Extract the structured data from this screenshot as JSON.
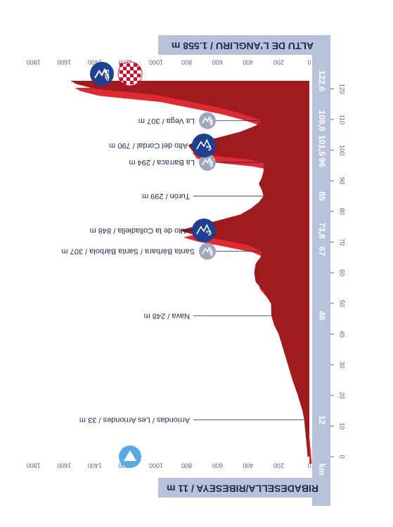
{
  "chart_data": {
    "type": "area",
    "start_title": "RIBADESELLA/RIBESEYA / 11 m",
    "finish_title": "ALTU DE L'ANGLIRU / 1.558 m",
    "x_unit": "km",
    "xlim": [
      0,
      122.6
    ],
    "ylim": [
      0,
      1800
    ],
    "x_ticks": [
      0,
      10,
      20,
      30,
      40,
      50,
      60,
      70,
      80,
      90,
      100,
      110,
      120
    ],
    "y_ticks": [
      0,
      200,
      400,
      600,
      800,
      1000,
      1200,
      1400,
      1600,
      1800
    ],
    "km_markers": [
      "12",
      "46",
      "67",
      "73,8",
      "85",
      "96",
      "101,5",
      "109,6",
      "122,6"
    ],
    "profile": {
      "x": [
        0,
        5,
        10,
        12,
        15,
        20,
        25,
        30,
        35,
        40,
        43,
        46,
        50,
        54,
        57,
        60,
        63,
        65,
        67,
        69,
        71,
        72.5,
        73.8,
        75,
        77,
        79,
        81,
        83,
        85,
        87,
        89,
        91,
        93,
        95,
        96,
        97,
        98,
        99.5,
        101.5,
        102.5,
        104,
        106,
        108,
        109.6,
        110.5,
        112,
        114,
        116,
        118,
        119,
        120,
        121.5,
        122.6
      ],
      "y": [
        11,
        20,
        30,
        33,
        45,
        75,
        110,
        140,
        170,
        200,
        230,
        248,
        250,
        300,
        350,
        360,
        350,
        320,
        307,
        400,
        600,
        760,
        848,
        760,
        600,
        450,
        380,
        330,
        299,
        310,
        330,
        310,
        300,
        296,
        294,
        400,
        600,
        760,
        790,
        760,
        600,
        450,
        350,
        307,
        360,
        450,
        600,
        800,
        1000,
        1200,
        1400,
        1520,
        1558
      ]
    },
    "annotations": [
      {
        "km": 12,
        "label": "Arriondas / Les Arriondes / 33 m",
        "badge": "none"
      },
      {
        "km": 46,
        "label": "Nava / 248 m",
        "badge": "none"
      },
      {
        "km": 67,
        "label": "Santa Bárbara / Santa Bárbola / 307 m",
        "badge": "sprint",
        "badge_text": "SP"
      },
      {
        "km": 73.8,
        "label": "Alto de la Colladiella / 848 m",
        "badge": "climb",
        "badge_text": "1ª"
      },
      {
        "km": 85,
        "label": "Turón / 299 m",
        "badge": "none"
      },
      {
        "km": 96,
        "label": "La Barraca / 294 m",
        "badge": "sprint",
        "badge_text": "SP"
      },
      {
        "km": 101.5,
        "label": "Alto del Cordal / 790 m",
        "badge": "climb",
        "badge_text": "1ª"
      },
      {
        "km": 109.6,
        "label": "La Vega / 307 m",
        "badge": "sprint",
        "badge_text": "SP"
      },
      {
        "km": 122.6,
        "label": "",
        "badge": "finish",
        "badge_text": "ESP"
      }
    ],
    "colors": {
      "profile_fill": "#9e1b20",
      "profile_side": "#e02a31",
      "band": "#b9c2db",
      "climb_badge": "#1f3f8f",
      "sprint_badge": "#9fa7bc",
      "start_badge": "#5aa9e6",
      "text": "#1b2a4a"
    },
    "icons": {
      "start": "start-triangle-icon",
      "finish": "checkered-flag-icon",
      "climb": "mountain-icon",
      "sprint": "sprint-icon",
      "summit": "summit-esp-icon"
    }
  }
}
